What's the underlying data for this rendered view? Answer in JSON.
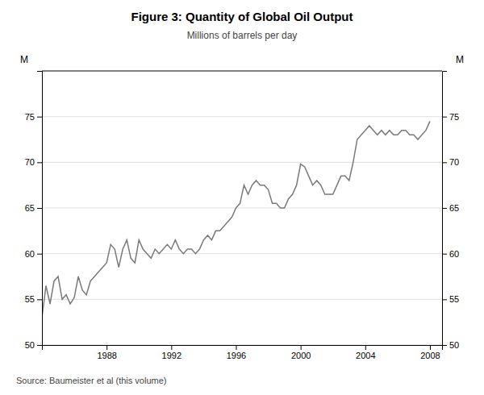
{
  "chart_data": {
    "type": "line",
    "title": "Figure 3: Quantity of Global Oil Output",
    "subtitle": "Millions of barrels per day",
    "y_label": "M",
    "y2_label": "M",
    "source": "Source: Baumeister et al (this volume)",
    "color": "#7a7a7a",
    "grid": true,
    "xlim": [
      1984.0,
      2008.75
    ],
    "xticks": [
      1988,
      1992,
      1996,
      2000,
      2004,
      2008
    ],
    "ylim": [
      50,
      80
    ],
    "yticks": [
      50,
      55,
      60,
      65,
      70,
      75
    ],
    "y2lim": [
      50,
      80
    ],
    "y2ticks": [
      50,
      55,
      60,
      65,
      70,
      75
    ],
    "x": [
      1984.0,
      1984.25,
      1984.5,
      1984.75,
      1985.0,
      1985.25,
      1985.5,
      1985.75,
      1986.0,
      1986.25,
      1986.5,
      1986.75,
      1987.0,
      1987.25,
      1987.5,
      1987.75,
      1988.0,
      1988.25,
      1988.5,
      1988.75,
      1989.0,
      1989.25,
      1989.5,
      1989.75,
      1990.0,
      1990.25,
      1990.5,
      1990.75,
      1991.0,
      1991.25,
      1991.5,
      1991.75,
      1992.0,
      1992.25,
      1992.5,
      1992.75,
      1993.0,
      1993.25,
      1993.5,
      1993.75,
      1994.0,
      1994.25,
      1994.5,
      1994.75,
      1995.0,
      1995.25,
      1995.5,
      1995.75,
      1996.0,
      1996.25,
      1996.5,
      1996.75,
      1997.0,
      1997.25,
      1997.5,
      1997.75,
      1998.0,
      1998.25,
      1998.5,
      1998.75,
      1999.0,
      1999.25,
      1999.5,
      1999.75,
      2000.0,
      2000.25,
      2000.5,
      2000.75,
      2001.0,
      2001.25,
      2001.5,
      2001.75,
      2002.0,
      2002.25,
      2002.5,
      2002.75,
      2003.0,
      2003.25,
      2003.5,
      2003.75,
      2004.0,
      2004.25,
      2004.5,
      2004.75,
      2005.0,
      2005.25,
      2005.5,
      2005.75,
      2006.0,
      2006.25,
      2006.5,
      2006.75,
      2007.0,
      2007.25,
      2007.5,
      2007.75,
      2008.0
    ],
    "values": [
      53.0,
      56.5,
      54.5,
      57.0,
      57.5,
      55.0,
      55.5,
      54.5,
      55.2,
      57.5,
      56.0,
      55.5,
      57.0,
      57.5,
      58.0,
      58.5,
      59.0,
      61.0,
      60.5,
      58.5,
      60.5,
      61.5,
      59.5,
      59.0,
      61.5,
      60.5,
      60.0,
      59.5,
      60.5,
      60.0,
      60.5,
      61.0,
      60.5,
      61.5,
      60.5,
      60.0,
      60.5,
      60.5,
      60.0,
      60.5,
      61.5,
      62.0,
      61.5,
      62.5,
      62.5,
      63.0,
      63.5,
      64.0,
      65.0,
      65.5,
      67.5,
      66.5,
      67.5,
      68.0,
      67.5,
      67.5,
      67.0,
      65.5,
      65.5,
      65.0,
      65.0,
      66.0,
      66.5,
      67.5,
      69.8,
      69.5,
      68.5,
      67.5,
      68.0,
      67.5,
      66.5,
      66.5,
      66.5,
      67.5,
      68.5,
      68.5,
      68.0,
      70.0,
      72.5,
      73.0,
      73.5,
      74.0,
      73.5,
      73.0,
      73.5,
      73.0,
      73.5,
      73.0,
      73.0,
      73.5,
      73.5,
      73.0,
      73.0,
      72.5,
      73.0,
      73.5,
      74.5
    ]
  }
}
